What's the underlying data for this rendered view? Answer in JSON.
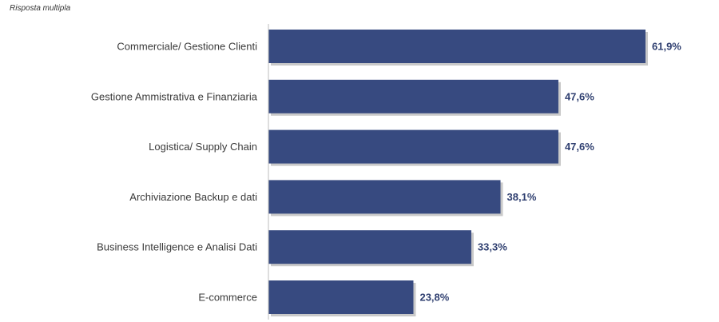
{
  "note": "Risposta multipla",
  "colors": {
    "bar": "#374a80",
    "bar_shadow": "#c9c9c9",
    "axis": "#bdbdbd",
    "value_text": "#2f3f70",
    "label_text": "#3a3a3a"
  },
  "chart_data": {
    "type": "bar",
    "orientation": "horizontal",
    "categories": [
      "Commerciale/ Gestione Clienti",
      "Gestione Ammistrativa e Finanziaria",
      "Logistica/ Supply Chain",
      "Archiviazione Backup e dati",
      "Business Intelligence e Analisi Dati",
      "E-commerce"
    ],
    "values": [
      61.9,
      47.6,
      47.6,
      38.1,
      33.3,
      23.8
    ],
    "value_labels": [
      "61,9%",
      "47,6%",
      "47,6%",
      "38,1%",
      "33,3%",
      "23,8%"
    ],
    "xlim": [
      0,
      61.9
    ],
    "grid": false,
    "legend": "none"
  }
}
